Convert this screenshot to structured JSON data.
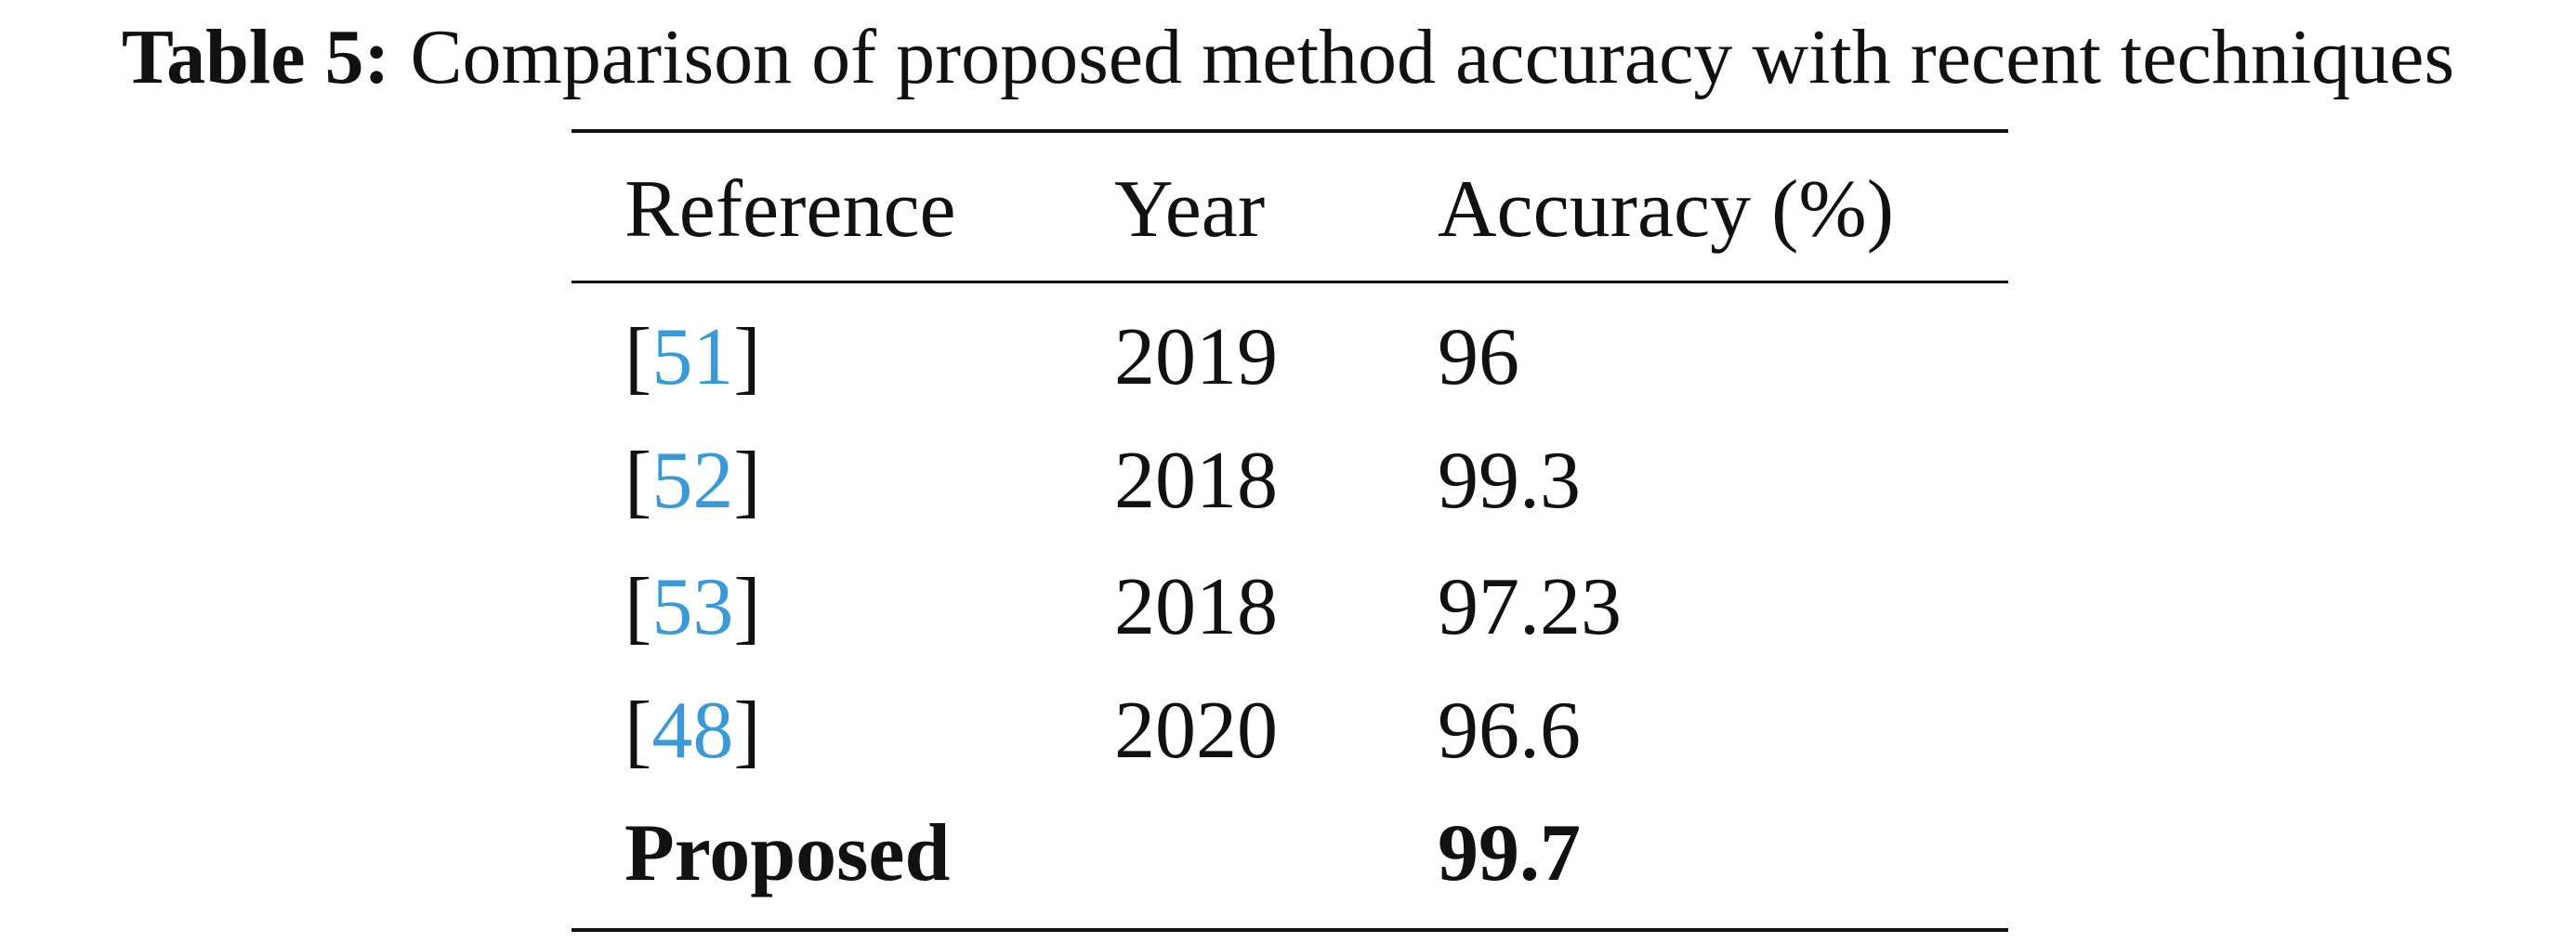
{
  "caption": {
    "label": "Table 5:",
    "text": "Comparison of proposed method accuracy with recent techniques"
  },
  "table": {
    "header": [
      "Reference",
      "Year",
      "Accuracy (%)"
    ],
    "rows": [
      {
        "reference": [
          "[",
          "51",
          "]"
        ],
        "year": "2019",
        "accuracy": "96"
      },
      {
        "reference": [
          "[",
          "52",
          "]"
        ],
        "year": "2018",
        "accuracy": "99.3"
      },
      {
        "reference": [
          "[",
          "53",
          "]"
        ],
        "year": "2018",
        "accuracy": "97.23"
      },
      {
        "reference": [
          "[",
          "48",
          "]"
        ],
        "year": "2020",
        "accuracy": "96.6"
      },
      {
        "reference": [
          "Proposed"
        ],
        "accuracy": "99.7",
        "bold": true
      }
    ]
  }
}
